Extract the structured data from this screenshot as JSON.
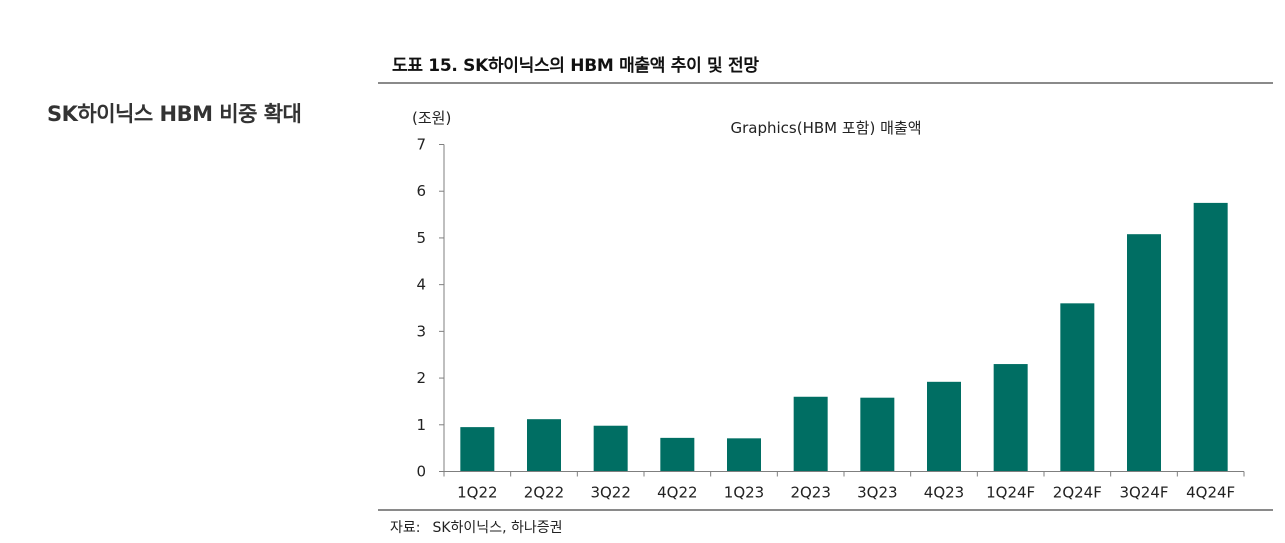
{
  "section": {
    "heading": "SK하이닉스 HBM 비중 확대"
  },
  "figure": {
    "title": "도표 15. SK하이닉스의 HBM 매출액 추이 및 전망",
    "source_label": "자료:",
    "source_text": "SK하이닉스, 하나증권"
  },
  "colors": {
    "bar": "#006e63",
    "axis": "#7f7f7f",
    "rule": "#8a8a8a"
  },
  "chart_data": {
    "type": "bar",
    "title": "Graphics(HBM 포함) 매출액",
    "ylabel": "(조원)",
    "xlabel": "",
    "ylim": [
      0,
      7
    ],
    "yticks": [
      0,
      1,
      2,
      3,
      4,
      5,
      6,
      7
    ],
    "grid": false,
    "legend": "none",
    "categories": [
      "1Q22",
      "2Q22",
      "3Q22",
      "4Q22",
      "1Q23",
      "2Q23",
      "3Q23",
      "4Q23",
      "1Q24F",
      "2Q24F",
      "3Q24F",
      "4Q24F"
    ],
    "series": [
      {
        "name": "Graphics(HBM 포함) 매출액",
        "values": [
          0.95,
          1.12,
          0.98,
          0.72,
          0.71,
          1.6,
          1.58,
          1.92,
          2.3,
          3.6,
          5.08,
          5.75
        ]
      }
    ]
  }
}
